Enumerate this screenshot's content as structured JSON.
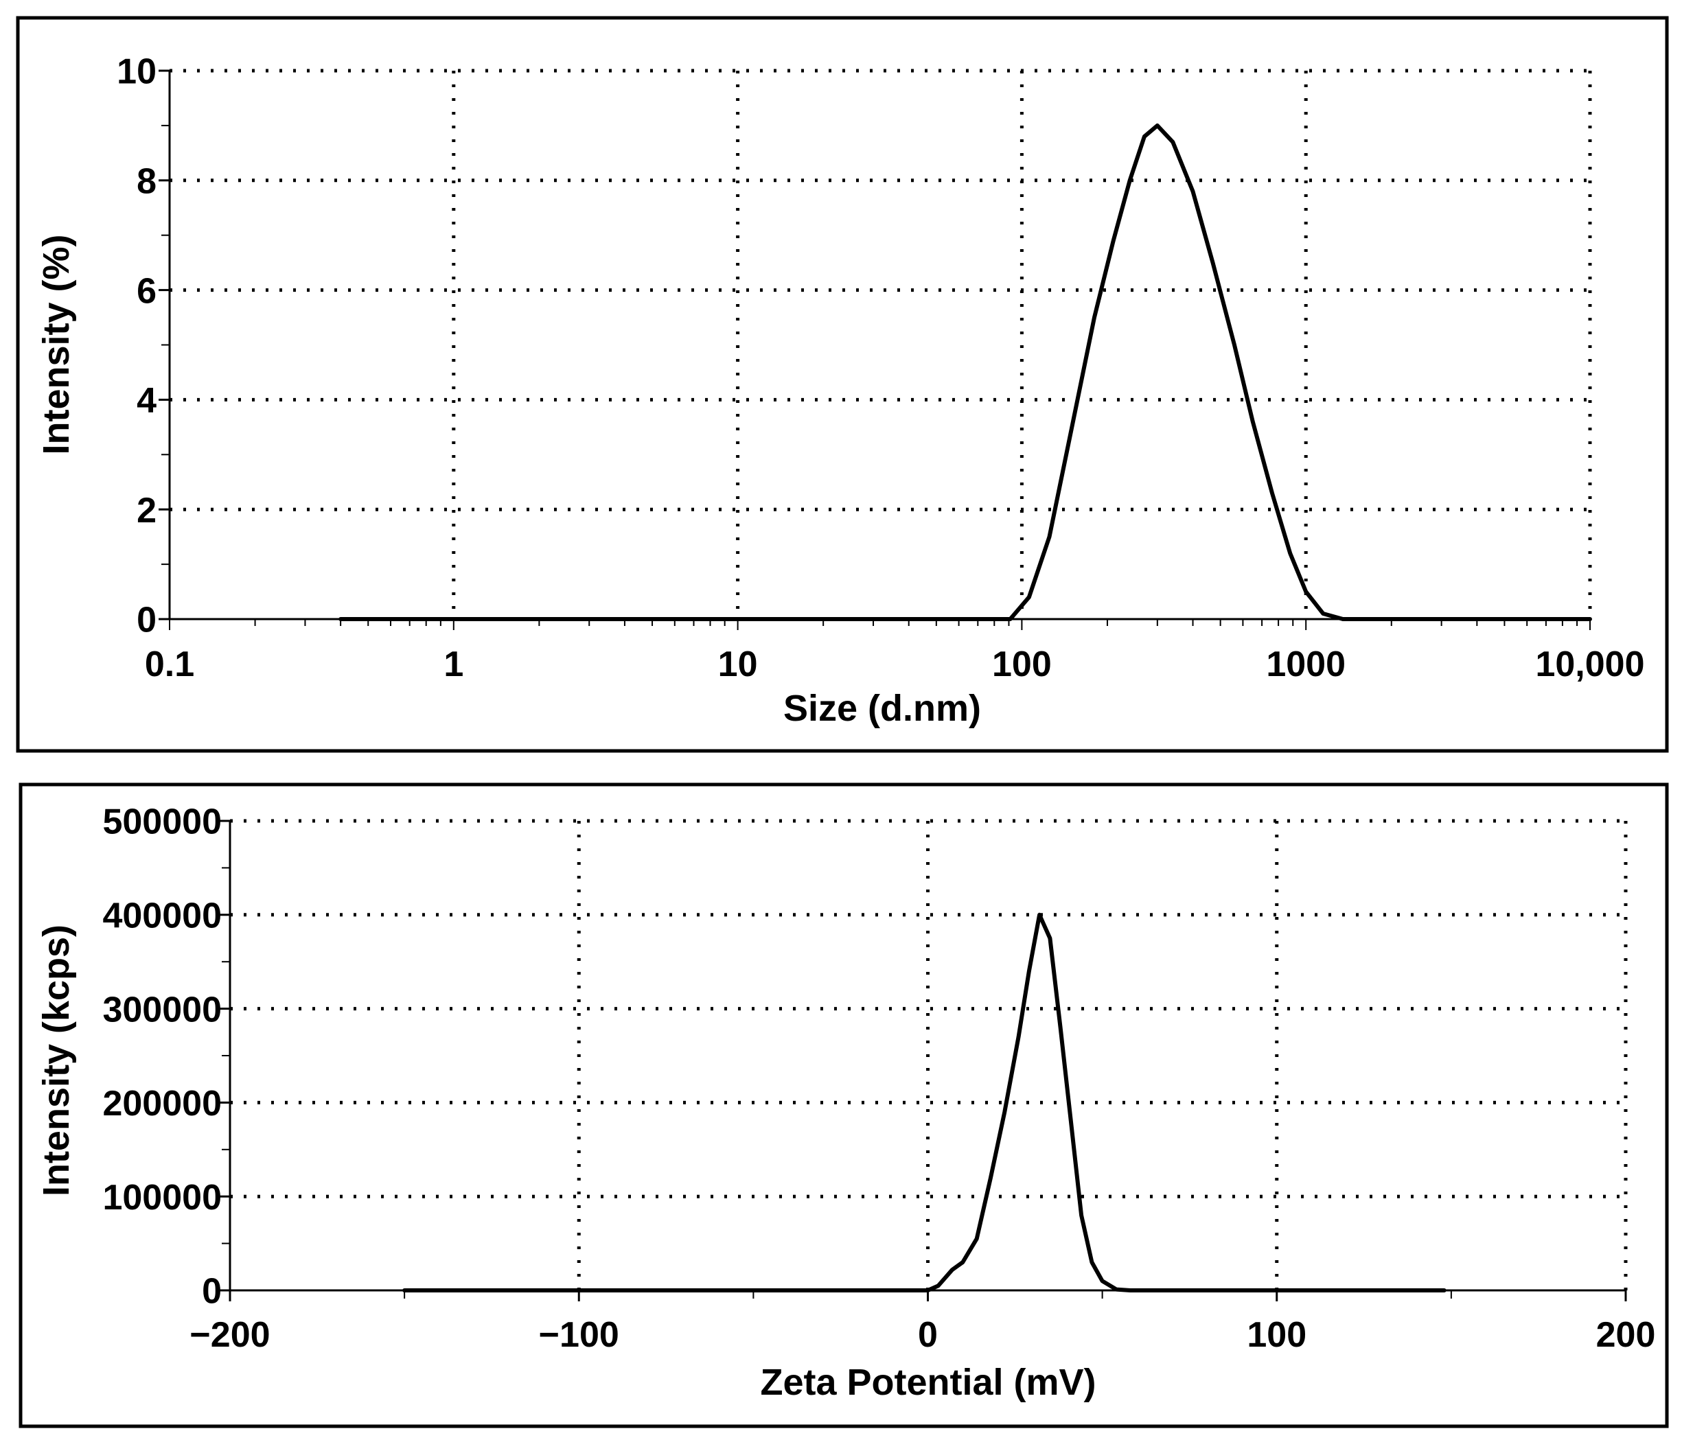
{
  "colors": {
    "line": "#000000",
    "grid": "#000000",
    "frame": "#000000",
    "background": "#ffffff"
  },
  "chart_data": [
    {
      "type": "line",
      "name": "size-distribution",
      "xscale": "log",
      "xlabel": "Size (d.nm)",
      "ylabel": "Intensity (%)",
      "xlim": [
        0.1,
        10000
      ],
      "ylim": [
        0,
        10
      ],
      "grid": true,
      "x_ticks": [
        0.1,
        1,
        10,
        100,
        1000,
        10000
      ],
      "x_tick_labels": [
        "0.1",
        "1",
        "10",
        "100",
        "1000",
        "10,000"
      ],
      "y_ticks": [
        0,
        2,
        4,
        6,
        8,
        10
      ],
      "y_tick_labels": [
        "0",
        "2",
        "4",
        "6",
        "8",
        "10"
      ],
      "series": [
        {
          "name": "Intensity",
          "x": [
            0.4,
            1,
            10,
            60,
            91,
            106,
            125,
            150,
            180,
            210,
            240,
            270,
            300,
            340,
            400,
            470,
            560,
            650,
            760,
            880,
            1000,
            1150,
            1350,
            3000,
            10000
          ],
          "y": [
            0,
            0,
            0,
            0,
            0,
            0.4,
            1.5,
            3.5,
            5.5,
            6.9,
            8.0,
            8.8,
            9.0,
            8.7,
            7.8,
            6.5,
            5.0,
            3.6,
            2.3,
            1.2,
            0.5,
            0.1,
            0,
            0,
            0
          ]
        }
      ]
    },
    {
      "type": "line",
      "name": "zeta-potential",
      "xscale": "linear",
      "xlabel": "Zeta Potential (mV)",
      "ylabel": "Intensity (kcps)",
      "xlim": [
        -200,
        200
      ],
      "ylim": [
        0,
        500000
      ],
      "grid": true,
      "x_ticks": [
        -200,
        -100,
        0,
        100,
        200
      ],
      "x_tick_labels": [
        "−200",
        "−100",
        "0",
        "100",
        "200"
      ],
      "y_ticks": [
        0,
        100000,
        200000,
        300000,
        400000,
        500000
      ],
      "y_tick_labels": [
        "0",
        "100000",
        "200000",
        "300000",
        "400000",
        "500000"
      ],
      "series": [
        {
          "name": "Intensity",
          "x": [
            -150,
            -50,
            0,
            3,
            7,
            10,
            14,
            18,
            22,
            26,
            29,
            32,
            35,
            38,
            41,
            44,
            47,
            50,
            54,
            58,
            62,
            100,
            148
          ],
          "y": [
            0,
            0,
            0,
            5000,
            22000,
            30000,
            55000,
            120000,
            190000,
            270000,
            340000,
            400000,
            375000,
            280000,
            180000,
            80000,
            30000,
            10000,
            1000,
            0,
            0,
            0,
            0
          ]
        }
      ]
    }
  ]
}
